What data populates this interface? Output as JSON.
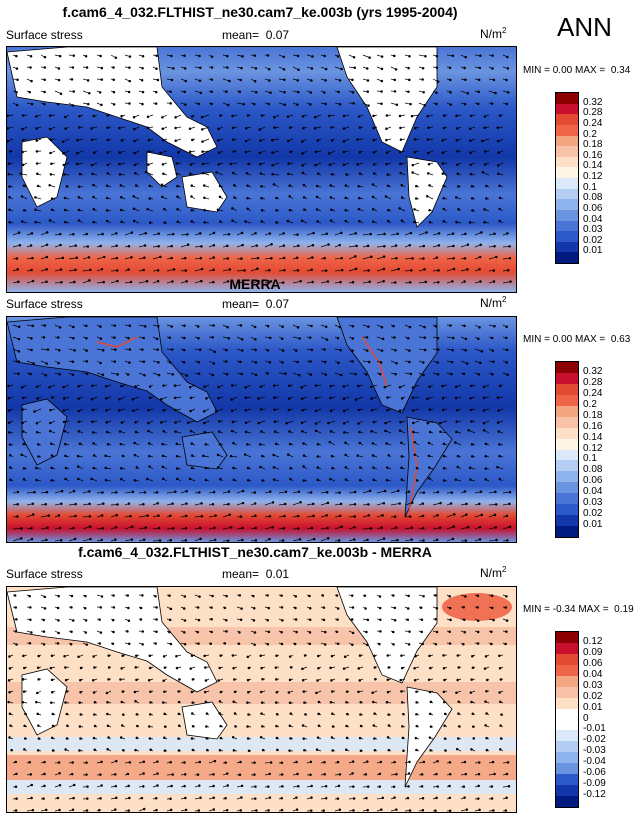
{
  "header": {
    "season": "ANN"
  },
  "panels": [
    {
      "id": "model",
      "title": "f.cam6_4_032.FLTHIST_ne30.cam7_ke.003b (yrs 1995-2004)",
      "variable": "Surface stress",
      "mean_label": "mean=",
      "mean_value": "0.07",
      "units": "N/m",
      "units_sup": "2",
      "min_label": "MIN =",
      "min_value": "0.00",
      "max_label": "MAX =",
      "max_value": "0.34"
    },
    {
      "id": "obs",
      "title": "MERRA",
      "variable": "Surface stress",
      "mean_label": "mean=",
      "mean_value": "0.07",
      "units": "N/m",
      "units_sup": "2",
      "min_label": "MIN =",
      "min_value": "0.00",
      "max_label": "MAX =",
      "max_value": "0.63"
    },
    {
      "id": "diff",
      "title": "f.cam6_4_032.FLTHIST_ne30.cam7_ke.003b - MERRA",
      "variable": "Surface stress",
      "mean_label": "mean=",
      "mean_value": "0.01",
      "units": "N/m",
      "units_sup": "2",
      "min_label": "MIN =",
      "min_value": "-0.34",
      "max_label": "MAX =",
      "max_value": "0.19"
    }
  ],
  "colorbars": {
    "abs_levels": [
      "0.32",
      "0.28",
      "0.24",
      "0.2",
      "0.18",
      "0.16",
      "0.14",
      "0.12",
      "0.1",
      "0.08",
      "0.06",
      "0.04",
      "0.03",
      "0.02",
      "0.01"
    ],
    "abs_colors": [
      "#8b0000",
      "#c8102e",
      "#e34a33",
      "#ef6548",
      "#f4a582",
      "#f7c2a8",
      "#fde0c5",
      "#fff5e6",
      "#dbe8fa",
      "#b3cef2",
      "#8fb3ec",
      "#6b94e0",
      "#4a75d6",
      "#2c58c8",
      "#1237a8",
      "#001a80"
    ],
    "diff_levels": [
      "0.12",
      "0.09",
      "0.06",
      "0.04",
      "0.03",
      "0.02",
      "0.01",
      "0",
      "-0.01",
      "-0.02",
      "-0.03",
      "-0.04",
      "-0.06",
      "-0.09",
      "-0.12"
    ],
    "diff_colors": [
      "#8b0000",
      "#c8102e",
      "#e34a33",
      "#ef6548",
      "#f4a582",
      "#f7c2a8",
      "#fde0c5",
      "#ffffff",
      "#ffffff",
      "#dbe8fa",
      "#b3cef2",
      "#8fb3ec",
      "#6b94e0",
      "#2c58c8",
      "#1237a8",
      "#001a80"
    ]
  },
  "chart_data": [
    {
      "type": "heatmap",
      "title": "f.cam6_4_032.FLTHIST_ne30.cam7_ke.003b (yrs 1995-2004)",
      "variable": "Surface stress",
      "units": "N/m2",
      "mean": 0.07,
      "min": 0.0,
      "max": 0.34,
      "contour_levels": [
        0.01,
        0.02,
        0.03,
        0.04,
        0.06,
        0.08,
        0.1,
        0.12,
        0.14,
        0.16,
        0.18,
        0.2,
        0.24,
        0.28,
        0.32
      ],
      "overlay": "wind stress vectors"
    },
    {
      "type": "heatmap",
      "title": "MERRA",
      "variable": "Surface stress",
      "units": "N/m2",
      "mean": 0.07,
      "min": 0.0,
      "max": 0.63,
      "contour_levels": [
        0.01,
        0.02,
        0.03,
        0.04,
        0.06,
        0.08,
        0.1,
        0.12,
        0.14,
        0.16,
        0.18,
        0.2,
        0.24,
        0.28,
        0.32
      ],
      "overlay": "wind stress vectors"
    },
    {
      "type": "heatmap",
      "title": "f.cam6_4_032.FLTHIST_ne30.cam7_ke.003b - MERRA",
      "variable": "Surface stress",
      "units": "N/m2",
      "mean": 0.01,
      "min": -0.34,
      "max": 0.19,
      "contour_levels": [
        -0.12,
        -0.09,
        -0.06,
        -0.04,
        -0.03,
        -0.02,
        -0.01,
        0,
        0.01,
        0.02,
        0.03,
        0.04,
        0.06,
        0.09,
        0.12
      ],
      "overlay": "wind stress difference vectors"
    }
  ]
}
